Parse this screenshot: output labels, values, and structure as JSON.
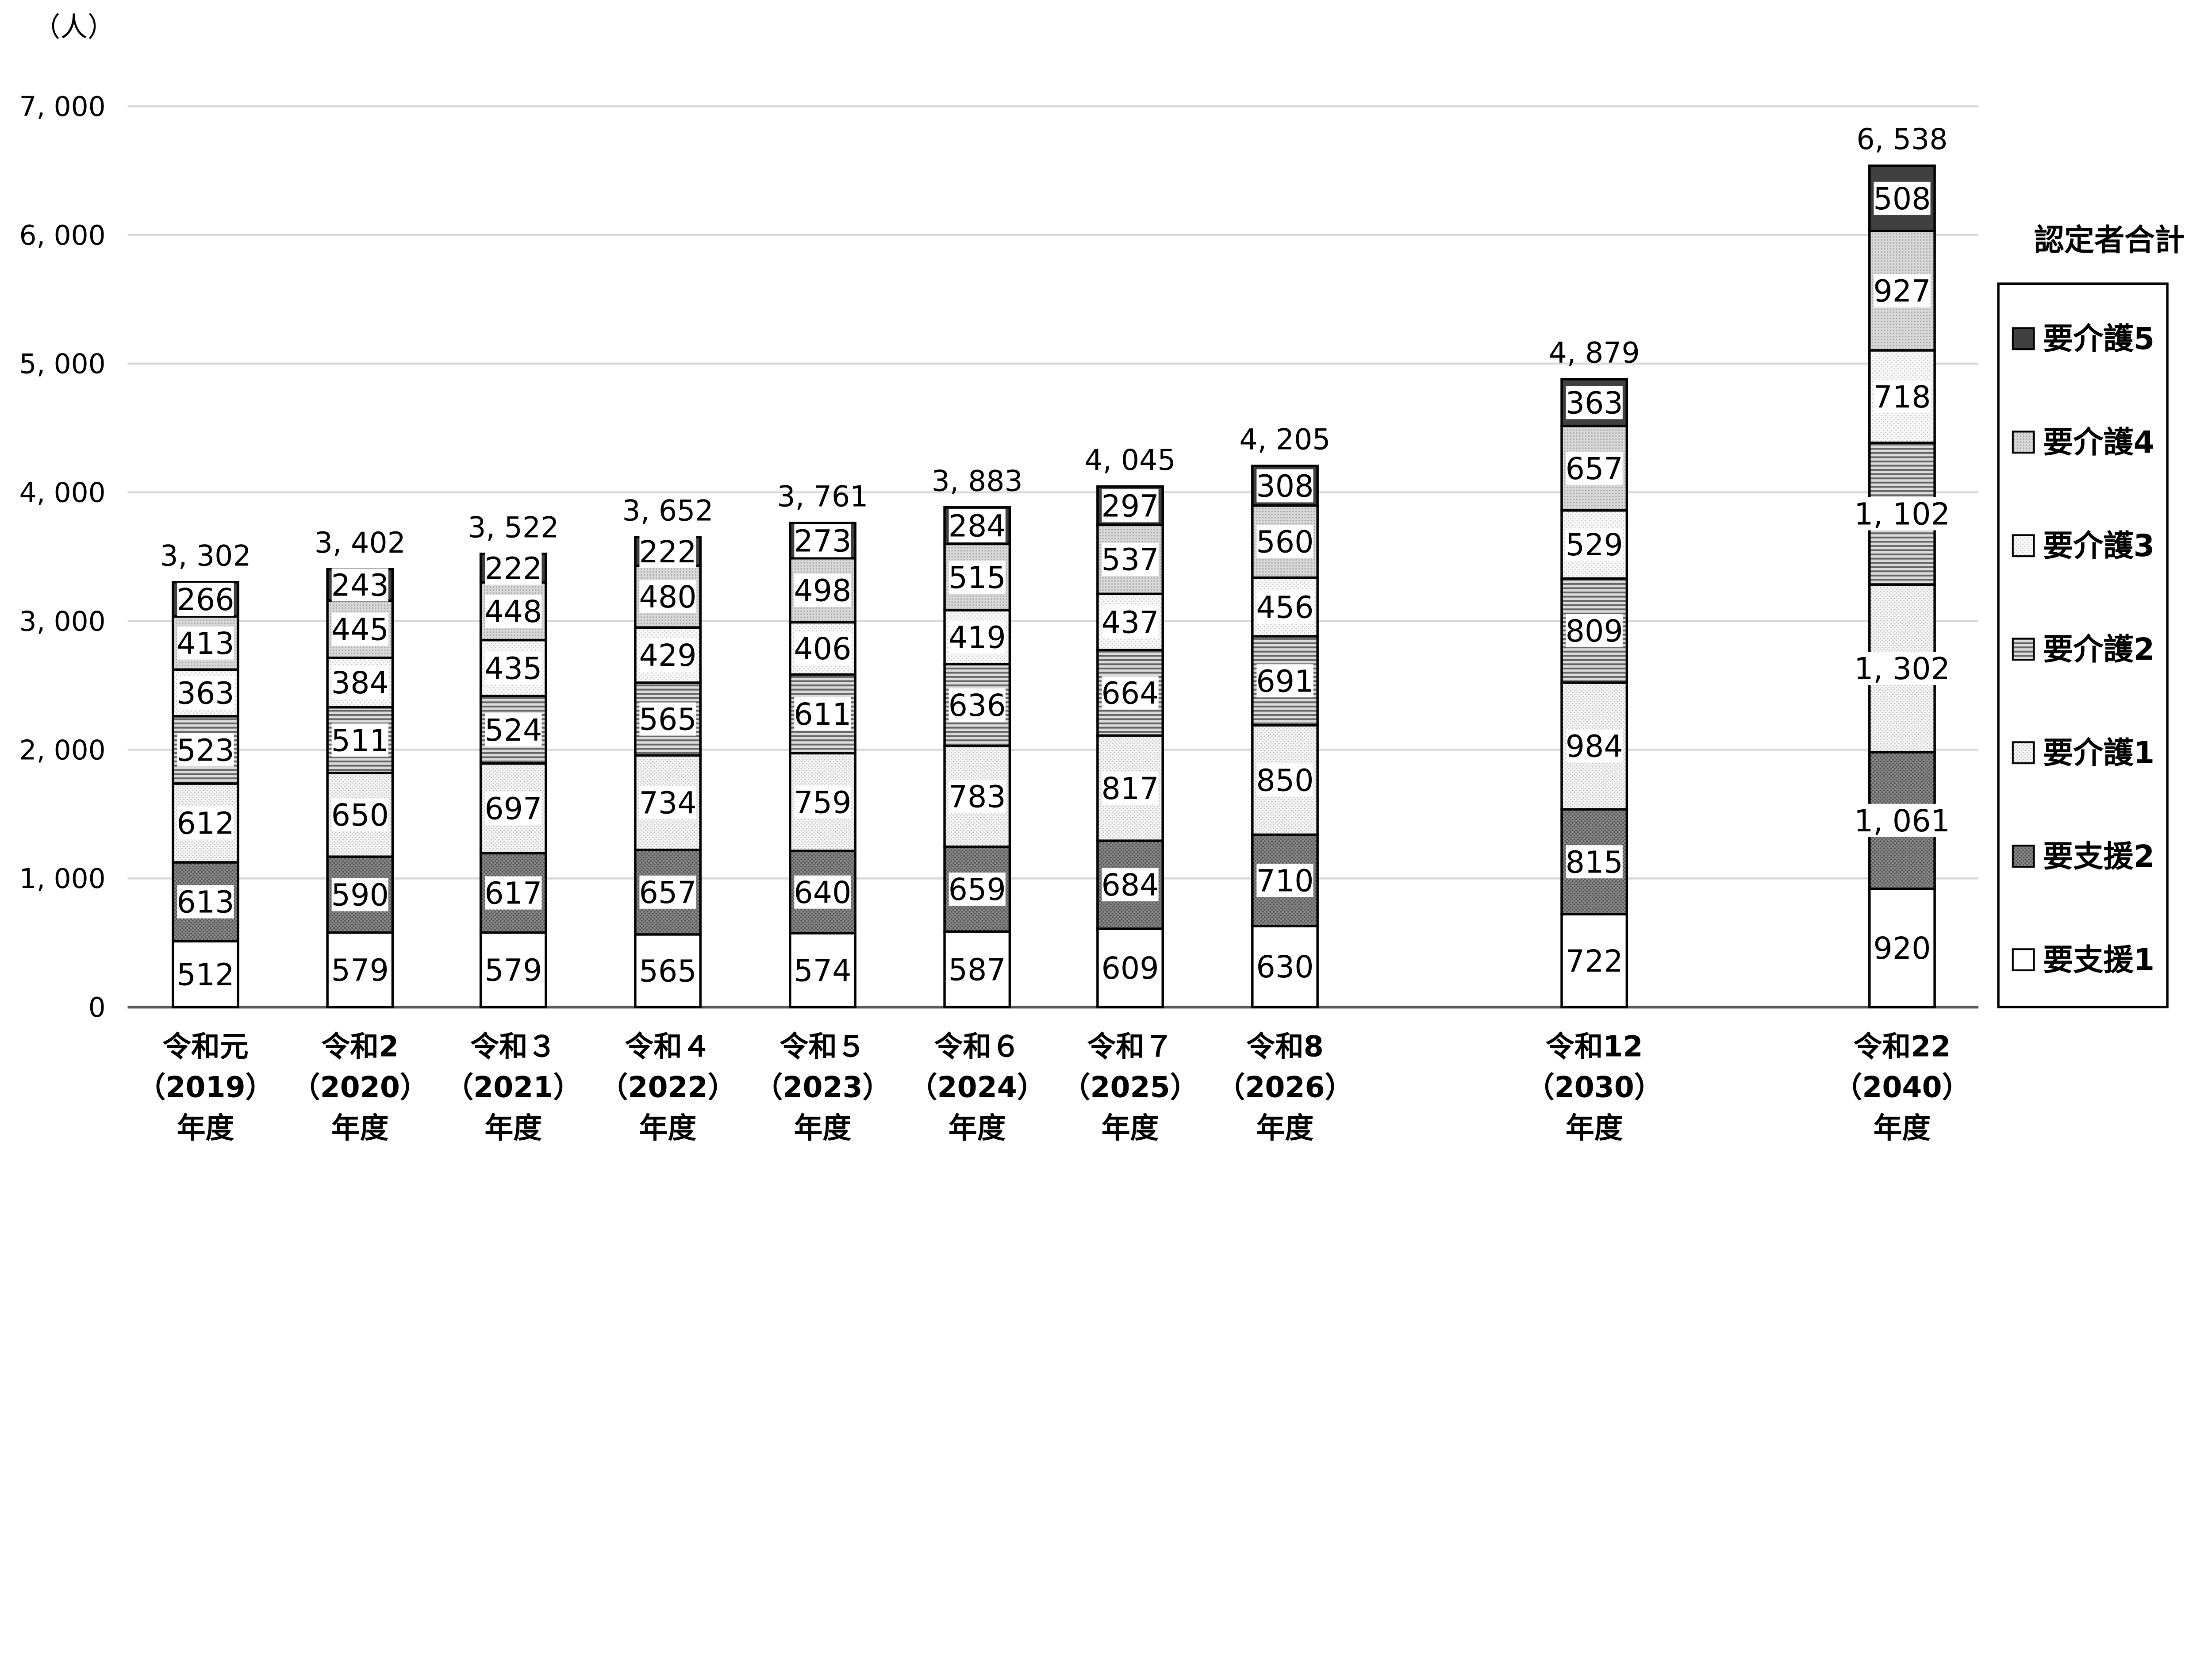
{
  "chart_data": {
    "type": "bar",
    "stacked": true,
    "title": "",
    "unit_label": "（人）",
    "xlabel": "",
    "ylabel": "",
    "ylim": [
      0,
      7000
    ],
    "yticks": [
      0,
      1000,
      2000,
      3000,
      4000,
      5000,
      6000,
      7000
    ],
    "grid": true,
    "legend_title": "認定者合計",
    "legend_position": "right",
    "categories": [
      [
        "令和元",
        "（2019）",
        "年度"
      ],
      [
        "令和2",
        "（2020）",
        "年度"
      ],
      [
        "令和３",
        "（2021）",
        "年度"
      ],
      [
        "令和４",
        "（2022）",
        "年度"
      ],
      [
        "令和５",
        "（2023）",
        "年度"
      ],
      [
        "令和６",
        "（2024）",
        "年度"
      ],
      [
        "令和７",
        "（2025）",
        "年度"
      ],
      [
        "令和8",
        "（2026）",
        "年度"
      ],
      [
        "令和12",
        "（2030）",
        "年度"
      ],
      [
        "令和22",
        "（2040）",
        "年度"
      ]
    ],
    "series": [
      {
        "name": "要支援1",
        "color": "#ffffff",
        "values": [
          512,
          579,
          579,
          565,
          574,
          587,
          609,
          630,
          722,
          920
        ]
      },
      {
        "name": "要支援2",
        "color": "#707070",
        "values": [
          613,
          590,
          617,
          657,
          640,
          659,
          684,
          710,
          815,
          1061
        ]
      },
      {
        "name": "要介護1",
        "color": "#e8e8e8",
        "values": [
          612,
          650,
          697,
          734,
          759,
          783,
          817,
          850,
          984,
          1302
        ]
      },
      {
        "name": "要介護2",
        "color": "#9a9a9a",
        "values": [
          523,
          511,
          524,
          565,
          611,
          636,
          664,
          691,
          809,
          1102
        ]
      },
      {
        "name": "要介護3",
        "color": "#f2f2f2",
        "values": [
          363,
          384,
          435,
          429,
          406,
          419,
          437,
          456,
          529,
          718
        ]
      },
      {
        "name": "要介護4",
        "color": "#cfcfcf",
        "values": [
          413,
          445,
          448,
          480,
          498,
          515,
          537,
          560,
          657,
          927
        ]
      },
      {
        "name": "要介護5",
        "color": "#404040",
        "values": [
          266,
          243,
          222,
          222,
          273,
          284,
          297,
          308,
          363,
          508
        ]
      }
    ],
    "totals": [
      3302,
      3402,
      3522,
      3652,
      3761,
      3883,
      4045,
      4205,
      4879,
      6538
    ]
  }
}
